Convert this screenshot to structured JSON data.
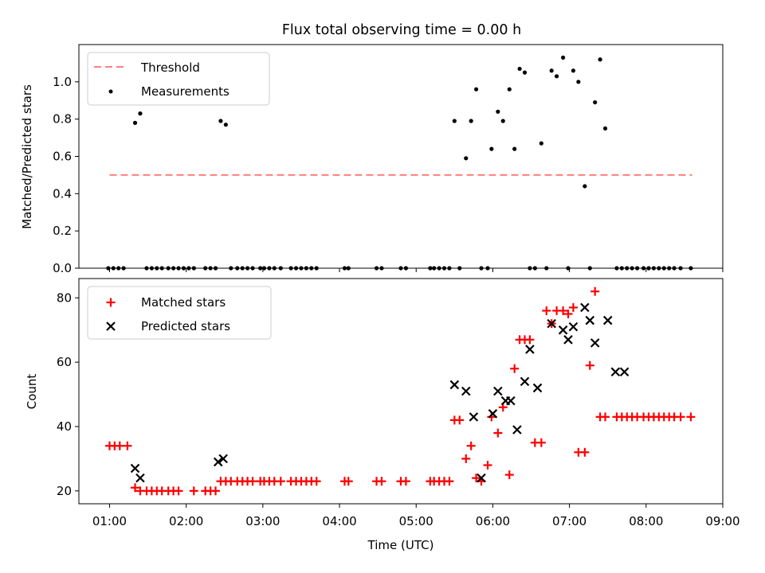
{
  "title": "Flux total observing time = 0.00 h",
  "chart_data": [
    {
      "type": "scatter",
      "title": "Flux total observing time = 0.00 h",
      "xlabel": "",
      "ylabel": "Matched/Predicted stars",
      "xlim": [
        "00:36",
        "09:00"
      ],
      "ylim": [
        0,
        1.2
      ],
      "yticks": [
        0.0,
        0.2,
        0.4,
        0.6,
        0.8,
        1.0
      ],
      "ytick_labels": [
        "0.0",
        "0.2",
        "0.4",
        "0.6",
        "0.8",
        "1.0"
      ],
      "legend_position": "upper-left",
      "grid": false,
      "threshold": {
        "name": "Threshold",
        "value": 0.5,
        "x_range": [
          "01:00",
          "08:36"
        ],
        "color": "#ff7f7f",
        "style": "dashed"
      },
      "series": [
        {
          "name": "Measurements",
          "marker": "dot",
          "color": "#000000",
          "x": [
            "00:59",
            "01:03",
            "01:07",
            "01:11",
            "01:20",
            "01:24",
            "01:29",
            "01:33",
            "01:37",
            "01:41",
            "01:46",
            "01:50",
            "01:54",
            "01:58",
            "02:02",
            "02:06",
            "02:15",
            "02:19",
            "02:23",
            "02:27",
            "02:31",
            "02:35",
            "02:40",
            "02:44",
            "02:48",
            "02:52",
            "02:58",
            "03:01",
            "03:05",
            "03:09",
            "03:14",
            "03:22",
            "03:26",
            "03:30",
            "03:34",
            "03:38",
            "03:42",
            "04:04",
            "04:07",
            "04:29",
            "04:33",
            "04:48",
            "04:52",
            "05:11",
            "05:14",
            "05:18",
            "05:22",
            "05:26",
            "05:30",
            "05:34",
            "05:39",
            "05:43",
            "05:47",
            "05:51",
            "05:56",
            "05:59",
            "06:04",
            "06:08",
            "06:13",
            "06:17",
            "06:21",
            "06:25",
            "06:29",
            "06:33",
            "06:38",
            "06:42",
            "06:46",
            "06:50",
            "06:55",
            "06:59",
            "07:03",
            "07:07",
            "07:12",
            "07:16",
            "07:20",
            "07:24",
            "07:28",
            "07:37",
            "07:41",
            "07:45",
            "07:49",
            "07:53",
            "07:58",
            "08:02",
            "08:06",
            "08:10",
            "08:14",
            "08:18",
            "08:22",
            "08:27",
            "08:35"
          ],
          "y": [
            0,
            0,
            0,
            0,
            0.78,
            0.83,
            0,
            0,
            0,
            0,
            0,
            0,
            0,
            0,
            0,
            0,
            0,
            0,
            0,
            0.79,
            0.77,
            0,
            0,
            0,
            0,
            0,
            0,
            0,
            0,
            0,
            0,
            0,
            0,
            0,
            0,
            0,
            0,
            0,
            0,
            0,
            0,
            0,
            0,
            0,
            0,
            0,
            0,
            0,
            0.79,
            0,
            0.59,
            0.79,
            0.96,
            0,
            0,
            0.64,
            0.84,
            0.79,
            0.96,
            0.64,
            1.07,
            1.05,
            0,
            0,
            0.67,
            0,
            1.06,
            1.03,
            1.13,
            0,
            1.06,
            1.0,
            0.44,
            0,
            0.89,
            1.12,
            0.75,
            0,
            0,
            0,
            0,
            0,
            0,
            0,
            0,
            0,
            0,
            0,
            0,
            0,
            0
          ]
        }
      ]
    },
    {
      "type": "scatter",
      "title": "",
      "xlabel": "Time (UTC)",
      "ylabel": "Count",
      "xlim": [
        "00:36",
        "09:00"
      ],
      "ylim": [
        16.0,
        86.0
      ],
      "xticks": [
        "01:00",
        "02:00",
        "03:00",
        "04:00",
        "05:00",
        "06:00",
        "07:00",
        "08:00",
        "09:00"
      ],
      "xtick_labels": [
        "01:00",
        "02:00",
        "03:00",
        "04:00",
        "05:00",
        "06:00",
        "07:00",
        "08:00",
        "09:00"
      ],
      "yticks": [
        20,
        40,
        60,
        80
      ],
      "ytick_labels": [
        "20",
        "40",
        "60",
        "80"
      ],
      "legend_position": "upper-left",
      "grid": false,
      "series": [
        {
          "name": "Matched stars",
          "marker": "plus",
          "color": "#ff0000",
          "x": [
            "01:00",
            "01:04",
            "01:08",
            "01:14",
            "01:20",
            "01:24",
            "01:29",
            "01:33",
            "01:37",
            "01:41",
            "01:46",
            "01:50",
            "01:54",
            "02:06",
            "02:15",
            "02:19",
            "02:23",
            "02:27",
            "02:31",
            "02:35",
            "02:40",
            "02:44",
            "02:48",
            "02:52",
            "02:58",
            "03:01",
            "03:05",
            "03:09",
            "03:14",
            "03:22",
            "03:26",
            "03:30",
            "03:34",
            "03:38",
            "03:42",
            "04:04",
            "04:07",
            "04:29",
            "04:33",
            "04:48",
            "04:52",
            "05:11",
            "05:14",
            "05:18",
            "05:22",
            "05:26",
            "05:30",
            "05:34",
            "05:39",
            "05:43",
            "05:47",
            "05:51",
            "05:56",
            "05:59",
            "06:04",
            "06:08",
            "06:13",
            "06:17",
            "06:21",
            "06:25",
            "06:29",
            "06:33",
            "06:38",
            "06:42",
            "06:46",
            "06:50",
            "06:55",
            "06:59",
            "07:03",
            "07:07",
            "07:12",
            "07:16",
            "07:20",
            "07:24",
            "07:28",
            "07:37",
            "07:41",
            "07:45",
            "07:49",
            "07:53",
            "07:58",
            "08:02",
            "08:06",
            "08:10",
            "08:14",
            "08:18",
            "08:22",
            "08:27",
            "08:35"
          ],
          "y": [
            34,
            34,
            34,
            34,
            21,
            20,
            20,
            20,
            20,
            20,
            20,
            20,
            20,
            20,
            20,
            20,
            20,
            23,
            23,
            23,
            23,
            23,
            23,
            23,
            23,
            23,
            23,
            23,
            23,
            23,
            23,
            23,
            23,
            23,
            23,
            23,
            23,
            23,
            23,
            23,
            23,
            23,
            23,
            23,
            23,
            23,
            42,
            42,
            30,
            34,
            24,
            23,
            28,
            43,
            38,
            46,
            25,
            58,
            67,
            67,
            67,
            35,
            35,
            76,
            72,
            76,
            76,
            75,
            77,
            32,
            32,
            59,
            82,
            43,
            43,
            43,
            43,
            43,
            43,
            43,
            43,
            43,
            43,
            43,
            43,
            43,
            43,
            43,
            43
          ]
        },
        {
          "name": "Predicted stars",
          "marker": "x",
          "color": "#000000",
          "x": [
            "01:20",
            "01:24",
            "02:25",
            "02:29",
            "05:30",
            "05:39",
            "05:45",
            "05:51",
            "06:00",
            "06:04",
            "06:10",
            "06:14",
            "06:19",
            "06:25",
            "06:29",
            "06:35",
            "06:46",
            "06:55",
            "06:59",
            "07:03",
            "07:12",
            "07:16",
            "07:20",
            "07:30",
            "07:36",
            "07:43"
          ],
          "y": [
            27,
            24,
            29,
            30,
            53,
            51,
            43,
            24,
            44,
            51,
            48,
            48,
            39,
            54,
            64,
            52,
            72,
            70,
            67,
            71,
            77,
            73,
            66,
            73,
            57,
            57
          ]
        }
      ]
    }
  ]
}
